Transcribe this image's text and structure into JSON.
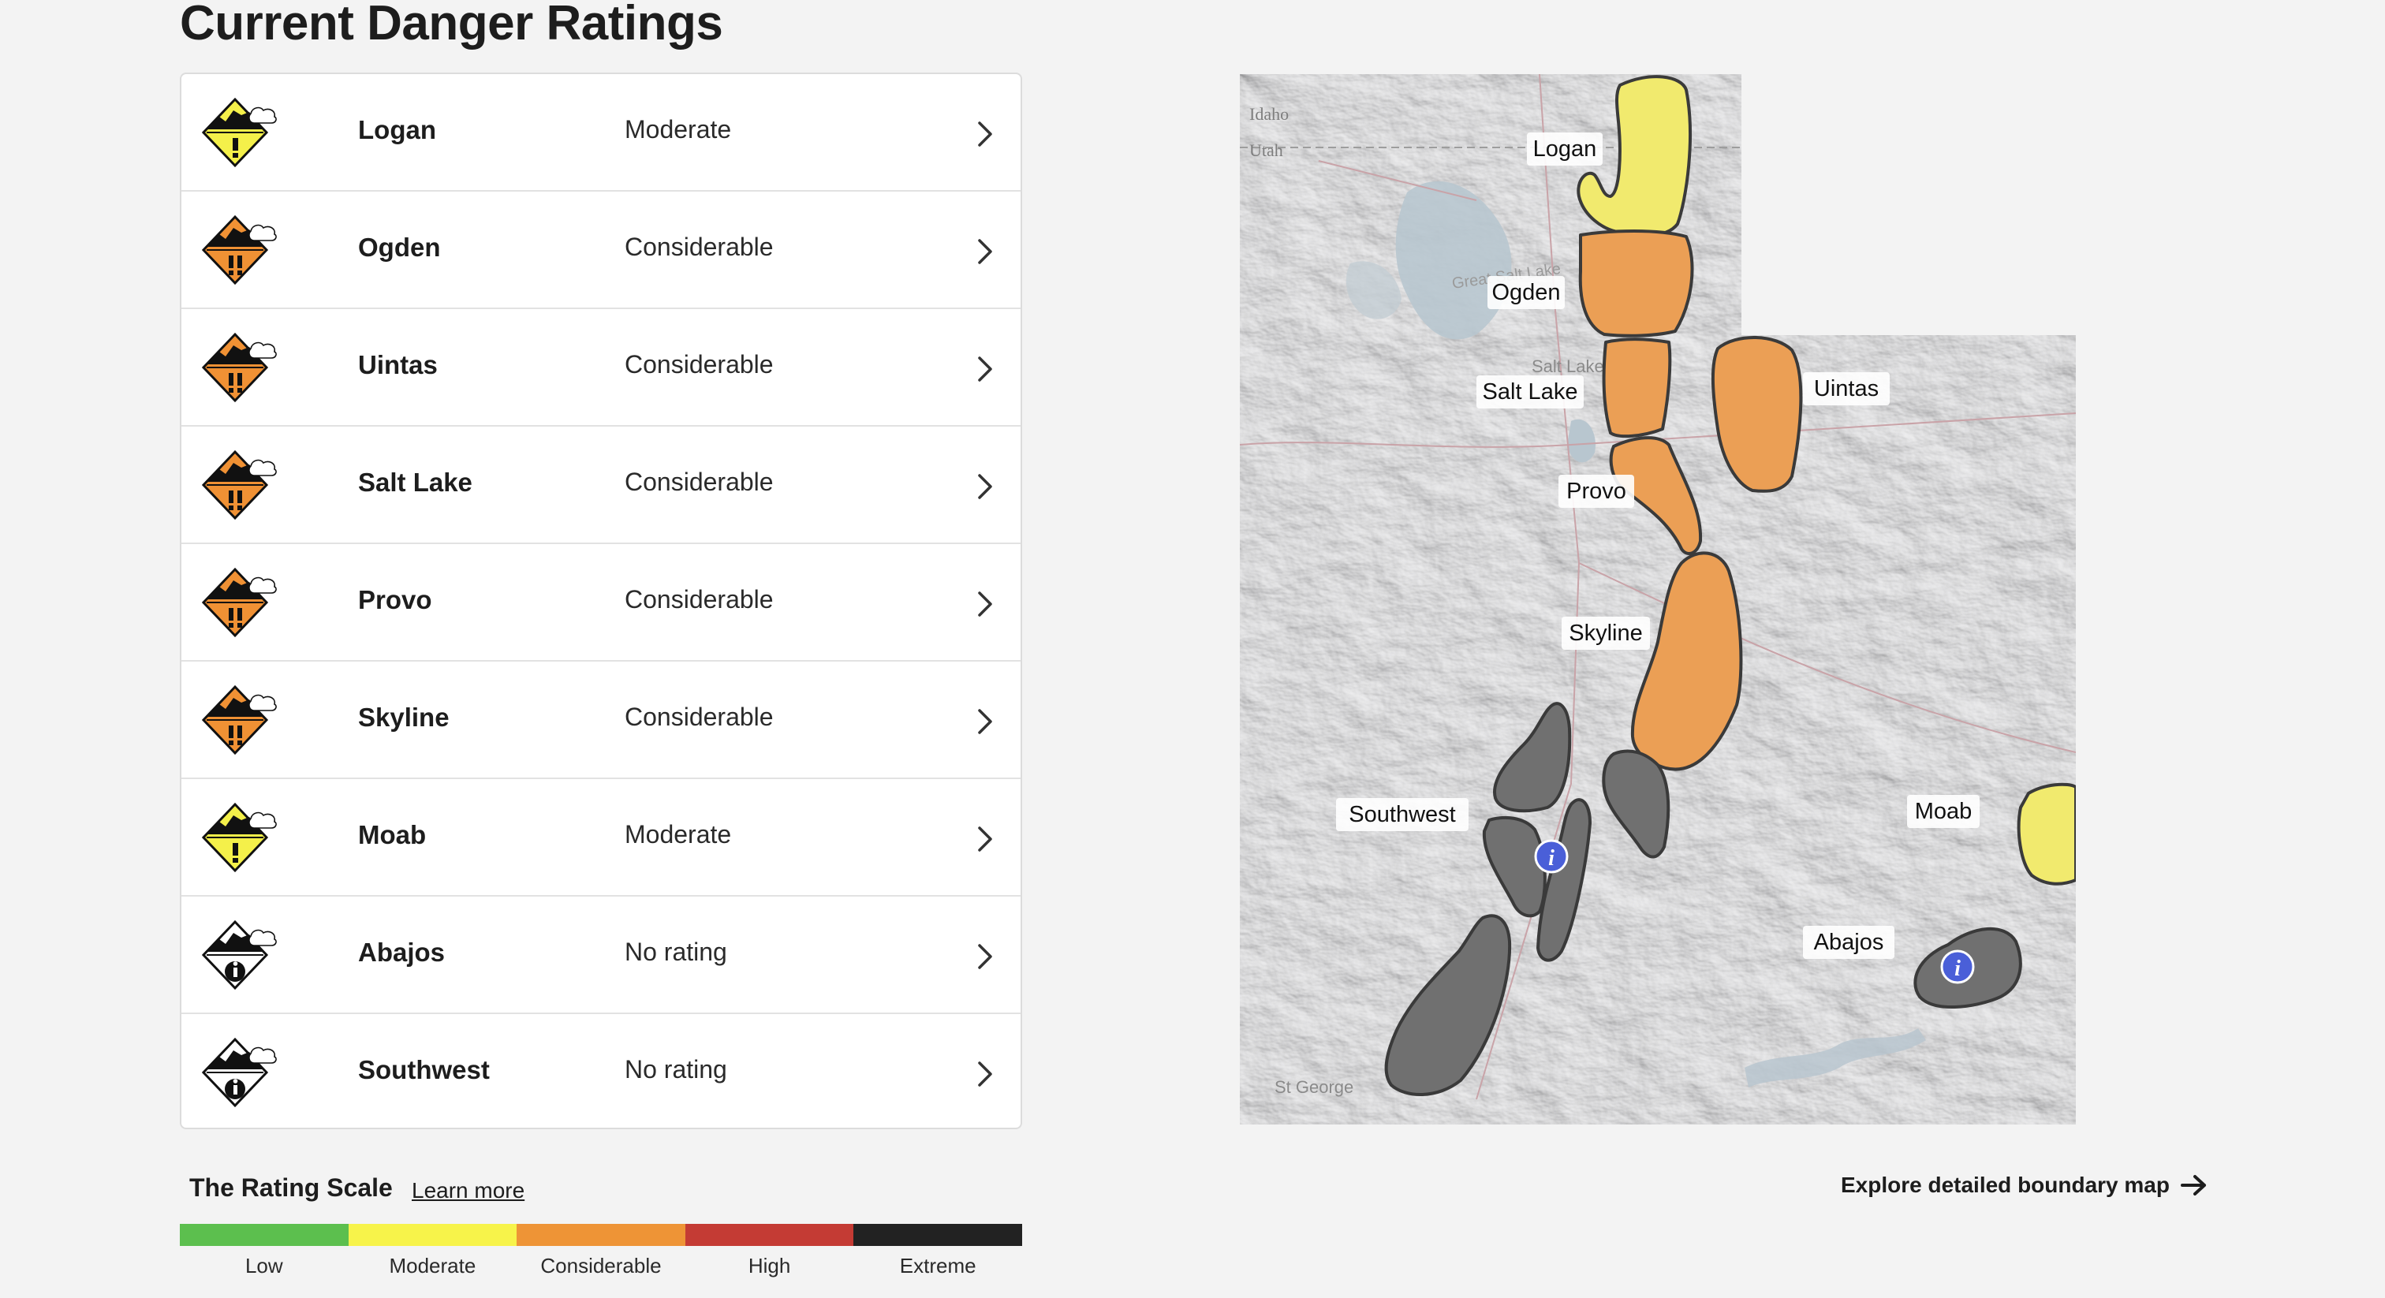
{
  "page_title": "Current Danger Ratings",
  "regions": [
    {
      "name": "Logan",
      "rating": "Moderate",
      "icon": "moderate-danger-icon",
      "color": "#f4f04a",
      "marks": "!"
    },
    {
      "name": "Ogden",
      "rating": "Considerable",
      "icon": "considerable-danger-icon",
      "color": "#f09134",
      "marks": "!!"
    },
    {
      "name": "Uintas",
      "rating": "Considerable",
      "icon": "considerable-danger-icon",
      "color": "#f09134",
      "marks": "!!"
    },
    {
      "name": "Salt Lake",
      "rating": "Considerable",
      "icon": "considerable-danger-icon",
      "color": "#f09134",
      "marks": "!!"
    },
    {
      "name": "Provo",
      "rating": "Considerable",
      "icon": "considerable-danger-icon",
      "color": "#f09134",
      "marks": "!!"
    },
    {
      "name": "Skyline",
      "rating": "Considerable",
      "icon": "considerable-danger-icon",
      "color": "#f09134",
      "marks": "!!"
    },
    {
      "name": "Moab",
      "rating": "Moderate",
      "icon": "moderate-danger-icon",
      "color": "#f4f04a",
      "marks": "!"
    },
    {
      "name": "Abajos",
      "rating": "No rating",
      "icon": "no-rating-info-icon",
      "color": "#ffffff",
      "marks": "i"
    },
    {
      "name": "Southwest",
      "rating": "No rating",
      "icon": "no-rating-info-icon",
      "color": "#ffffff",
      "marks": "i"
    }
  ],
  "rating_scale": {
    "title": "The Rating Scale",
    "learn_more": "Learn more",
    "levels": [
      {
        "label": "Low",
        "color": "#5cbf4e"
      },
      {
        "label": "Moderate",
        "color": "#f7f34a"
      },
      {
        "label": "Considerable",
        "color": "#ee9436"
      },
      {
        "label": "High",
        "color": "#c43b34"
      },
      {
        "label": "Extreme",
        "color": "#222222"
      }
    ]
  },
  "map": {
    "state_labels": [
      "Idaho",
      "Utah"
    ],
    "city_labels": [
      "Salt Lake City",
      "St George",
      "Great Salt Lake"
    ],
    "region_labels": {
      "logan": "Logan",
      "ogden": "Ogden",
      "salt_lake": "Salt Lake",
      "uintas": "Uintas",
      "provo": "Provo",
      "skyline": "Skyline",
      "southwest": "Southwest",
      "moab": "Moab",
      "abajos": "Abajos"
    },
    "info_marker": "i"
  },
  "explore_link": "Explore detailed boundary map"
}
